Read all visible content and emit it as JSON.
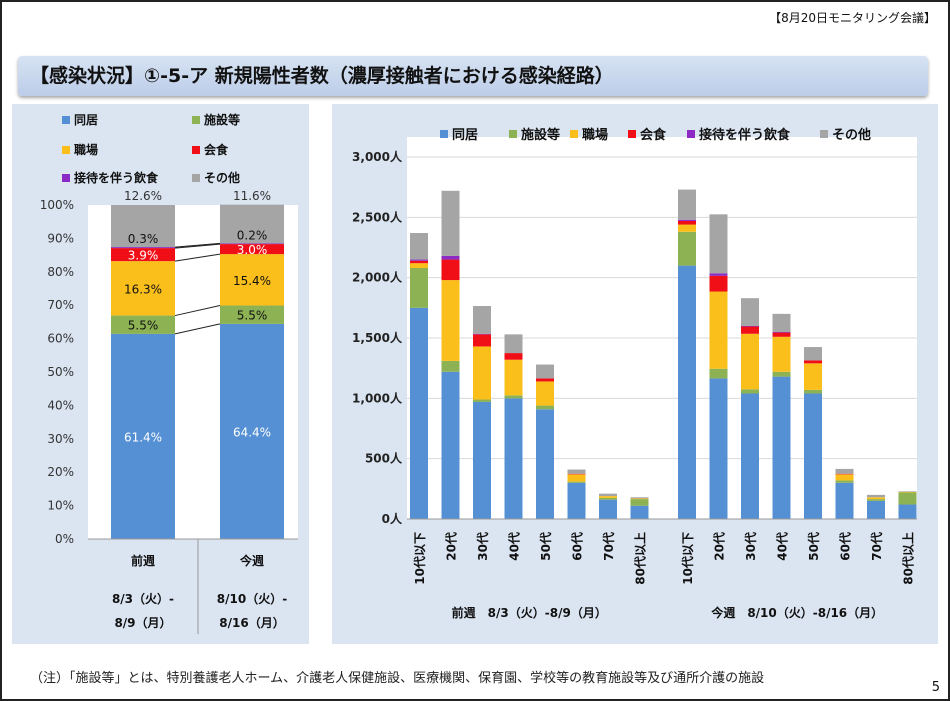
{
  "header": {
    "meeting": "【8月20日モニタリング会議】"
  },
  "title": "【感染状況】①-5-ア 新規陽性者数（濃厚接触者における感染経路）",
  "footnote": "（注）「施設等」とは、特別養護老人ホーム、介護老人保健施設、医療機関、保育園、学校等の教育施設等及び通所介護の施設",
  "page_number": "5",
  "colors": {
    "同居": "#5590d4",
    "施設等": "#8db254",
    "職場": "#fbbf1c",
    "会食": "#f00f16",
    "接待を伴う飲食": "#8d2ac4",
    "その他": "#a5a5a5"
  },
  "chart_data": [
    {
      "type": "bar",
      "stacked": "percent",
      "title": "",
      "legend": [
        "同居",
        "施設等",
        "職場",
        "会食",
        "接待を伴う飲食",
        "その他"
      ],
      "legend_position": "top",
      "categories": [
        "前週",
        "今週"
      ],
      "date_lines": [
        [
          "8/3（火）-",
          "8/9（月）"
        ],
        [
          "8/10（火）-",
          "8/16（月）"
        ]
      ],
      "yticks": [
        "0%",
        "10%",
        "20%",
        "30%",
        "40%",
        "50%",
        "60%",
        "70%",
        "80%",
        "90%",
        "100%"
      ],
      "ylim": [
        0,
        100
      ],
      "series": [
        {
          "name": "同居",
          "values": [
            61.4,
            64.4
          ],
          "labels": [
            "61.4%",
            "64.4%"
          ]
        },
        {
          "name": "施設等",
          "values": [
            5.5,
            5.5
          ],
          "labels": [
            "5.5%",
            "5.5%"
          ]
        },
        {
          "name": "職場",
          "values": [
            16.3,
            15.4
          ],
          "labels": [
            "16.3%",
            "15.4%"
          ]
        },
        {
          "name": "会食",
          "values": [
            3.9,
            3.0
          ],
          "labels": [
            "3.9%",
            "3.0%"
          ]
        },
        {
          "name": "接待を伴う飲食",
          "values": [
            0.3,
            0.2
          ],
          "labels": [
            "0.3%",
            "0.2%"
          ]
        },
        {
          "name": "その他",
          "values": [
            12.6,
            11.6
          ],
          "labels": [
            "12.6%",
            "11.6%"
          ]
        }
      ]
    },
    {
      "type": "bar",
      "stacked": "absolute",
      "legend": [
        "同居",
        "施設等",
        "職場",
        "会食",
        "接待を伴う飲食",
        "その他"
      ],
      "legend_position": "top",
      "yticks": [
        "0人",
        "500人",
        "1,000人",
        "1,500人",
        "2,000人",
        "2,500人",
        "3,000人"
      ],
      "ylim": [
        0,
        3000
      ],
      "groups": [
        {
          "label": "前週　8/3（火）-8/9（月）",
          "categories": [
            "10代以下",
            "20代",
            "30代",
            "40代",
            "50代",
            "60代",
            "70代",
            "80代以上"
          ],
          "series": [
            {
              "name": "同居",
              "values": [
                1750,
                1220,
                970,
                1000,
                910,
                300,
                160,
                110
              ]
            },
            {
              "name": "施設等",
              "values": [
                330,
                90,
                20,
                25,
                30,
                10,
                15,
                55
              ]
            },
            {
              "name": "職場",
              "values": [
                40,
                670,
                440,
                295,
                200,
                60,
                15,
                5
              ]
            },
            {
              "name": "会食",
              "values": [
                20,
                170,
                100,
                55,
                25,
                5,
                0,
                0
              ]
            },
            {
              "name": "接待を伴う飲食",
              "values": [
                10,
                30,
                5,
                0,
                0,
                0,
                0,
                0
              ]
            },
            {
              "name": "その他",
              "values": [
                220,
                540,
                230,
                155,
                115,
                35,
                20,
                10
              ]
            }
          ]
        },
        {
          "label": "今週　8/10（火）-8/16（月）",
          "categories": [
            "10代以下",
            "20代",
            "30代",
            "40代",
            "50代",
            "60代",
            "70代",
            "80代以上"
          ],
          "series": [
            {
              "name": "同居",
              "values": [
                2100,
                1165,
                1040,
                1180,
                1040,
                300,
                150,
                120
              ]
            },
            {
              "name": "施設等",
              "values": [
                280,
                80,
                35,
                40,
                30,
                20,
                15,
                100
              ]
            },
            {
              "name": "職場",
              "values": [
                60,
                640,
                460,
                290,
                220,
                50,
                15,
                5
              ]
            },
            {
              "name": "会食",
              "values": [
                30,
                130,
                60,
                35,
                25,
                5,
                0,
                0
              ]
            },
            {
              "name": "接待を伴う飲食",
              "values": [
                10,
                20,
                5,
                5,
                0,
                0,
                0,
                0
              ]
            },
            {
              "name": "その他",
              "values": [
                250,
                490,
                230,
                150,
                110,
                40,
                20,
                5
              ]
            }
          ]
        }
      ]
    }
  ]
}
